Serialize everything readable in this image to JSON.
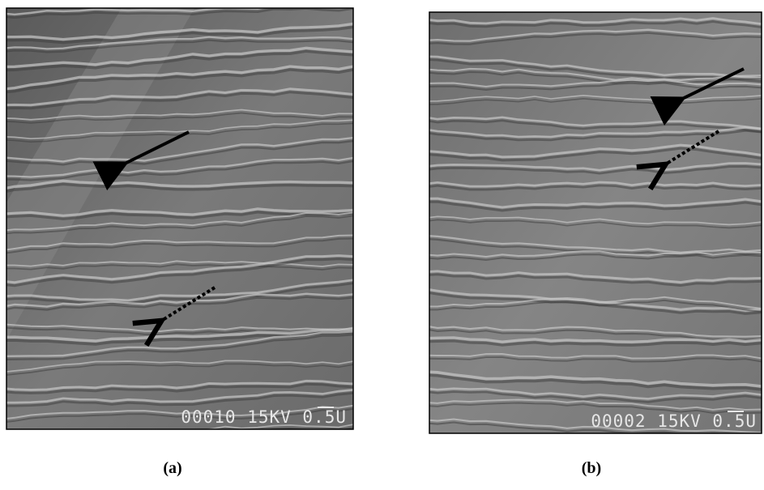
{
  "panels": [
    {
      "stamp": "00010 15KV 0.5U",
      "caption": "(a)"
    },
    {
      "stamp": "00002 15KV 0.5U",
      "caption": "(b)"
    }
  ]
}
